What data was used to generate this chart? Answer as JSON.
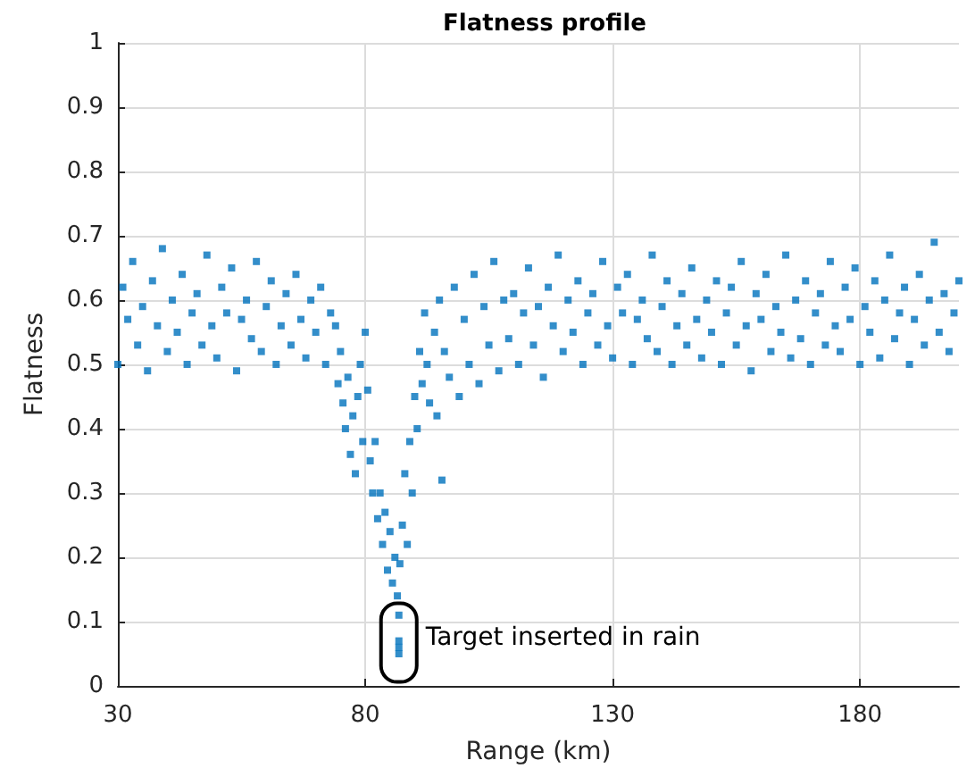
{
  "chart_data": {
    "type": "scatter",
    "title": "Flatness profile",
    "xlabel": "Range (km)",
    "ylabel": "Flatness",
    "annotations": [
      {
        "text": "Target inserted in rain",
        "x": 86.8,
        "y": 0.07
      }
    ],
    "xlim": [
      30,
      200
    ],
    "xticks": [
      30,
      80,
      130,
      180
    ],
    "ylim": [
      0,
      1
    ],
    "yticks": [
      0,
      0.1,
      0.2,
      0.3,
      0.4,
      0.5,
      0.6,
      0.7,
      0.8,
      0.9,
      1
    ],
    "grid": true,
    "marker": "square",
    "series": [
      {
        "color": "#0072bd",
        "x": [
          30,
          31,
          32,
          33,
          34,
          35,
          36,
          37,
          38,
          39,
          40,
          41,
          42,
          43,
          44,
          45,
          46,
          47,
          48,
          49,
          50,
          51,
          52,
          53,
          54,
          55,
          56,
          57,
          58,
          59,
          60,
          61,
          62,
          63,
          64,
          65,
          66,
          67,
          68,
          69,
          70,
          71,
          72,
          73,
          74,
          74.5,
          75,
          75.5,
          76,
          76.5,
          77,
          77.5,
          78,
          78.5,
          79,
          79.5,
          80,
          80.5,
          81,
          81.5,
          82,
          82.5,
          83,
          83.5,
          84,
          84.5,
          85,
          85.5,
          86,
          86.5,
          87,
          87.5,
          88,
          88.5,
          89,
          89.5,
          90,
          90.5,
          91,
          91.5,
          92,
          92.5,
          93,
          94,
          94.5,
          95,
          95.5,
          96,
          97,
          98,
          99,
          100,
          101,
          102,
          103,
          104,
          105,
          106,
          107,
          108,
          109,
          110,
          111,
          112,
          113,
          114,
          115,
          116,
          117,
          118,
          119,
          120,
          121,
          122,
          123,
          124,
          125,
          126,
          127,
          128,
          129,
          130,
          131,
          132,
          133,
          134,
          135,
          136,
          137,
          138,
          139,
          140,
          141,
          142,
          143,
          144,
          145,
          146,
          147,
          148,
          149,
          150,
          151,
          152,
          153,
          154,
          155,
          156,
          157,
          158,
          159,
          160,
          161,
          162,
          163,
          164,
          165,
          166,
          167,
          168,
          169,
          170,
          171,
          172,
          173,
          174,
          175,
          176,
          177,
          178,
          179,
          180,
          181,
          182,
          183,
          184,
          185,
          186,
          187,
          188,
          189,
          190,
          191,
          192,
          193,
          194,
          195,
          196,
          197,
          198,
          199,
          200,
          86.8,
          86.8,
          86.8,
          86.8
        ],
        "values": [
          0.5,
          0.62,
          0.57,
          0.66,
          0.53,
          0.59,
          0.49,
          0.63,
          0.56,
          0.68,
          0.52,
          0.6,
          0.55,
          0.64,
          0.5,
          0.58,
          0.61,
          0.53,
          0.67,
          0.56,
          0.51,
          0.62,
          0.58,
          0.65,
          0.49,
          0.57,
          0.6,
          0.54,
          0.66,
          0.52,
          0.59,
          0.63,
          0.5,
          0.56,
          0.61,
          0.53,
          0.64,
          0.57,
          0.51,
          0.6,
          0.55,
          0.62,
          0.5,
          0.58,
          0.56,
          0.47,
          0.52,
          0.44,
          0.4,
          0.48,
          0.36,
          0.42,
          0.33,
          0.45,
          0.5,
          0.38,
          0.55,
          0.46,
          0.35,
          0.3,
          0.38,
          0.26,
          0.3,
          0.22,
          0.27,
          0.18,
          0.24,
          0.16,
          0.2,
          0.14,
          0.19,
          0.25,
          0.33,
          0.22,
          0.38,
          0.3,
          0.45,
          0.4,
          0.52,
          0.47,
          0.58,
          0.5,
          0.44,
          0.55,
          0.42,
          0.6,
          0.32,
          0.52,
          0.48,
          0.62,
          0.45,
          0.57,
          0.5,
          0.64,
          0.47,
          0.59,
          0.53,
          0.66,
          0.49,
          0.6,
          0.54,
          0.61,
          0.5,
          0.58,
          0.65,
          0.53,
          0.59,
          0.48,
          0.62,
          0.56,
          0.67,
          0.52,
          0.6,
          0.55,
          0.63,
          0.5,
          0.58,
          0.61,
          0.53,
          0.66,
          0.56,
          0.51,
          0.62,
          0.58,
          0.64,
          0.5,
          0.57,
          0.6,
          0.54,
          0.67,
          0.52,
          0.59,
          0.63,
          0.5,
          0.56,
          0.61,
          0.53,
          0.65,
          0.57,
          0.51,
          0.6,
          0.55,
          0.63,
          0.5,
          0.58,
          0.62,
          0.53,
          0.66,
          0.56,
          0.49,
          0.61,
          0.57,
          0.64,
          0.52,
          0.59,
          0.55,
          0.67,
          0.51,
          0.6,
          0.54,
          0.63,
          0.5,
          0.58,
          0.61,
          0.53,
          0.66,
          0.56,
          0.52,
          0.62,
          0.57,
          0.65,
          0.5,
          0.59,
          0.55,
          0.63,
          0.51,
          0.6,
          0.67,
          0.54,
          0.58,
          0.62,
          0.5,
          0.57,
          0.64,
          0.53,
          0.6,
          0.69,
          0.55,
          0.61,
          0.52,
          0.58,
          0.63,
          0.11,
          0.07,
          0.06,
          0.05
        ]
      }
    ]
  }
}
